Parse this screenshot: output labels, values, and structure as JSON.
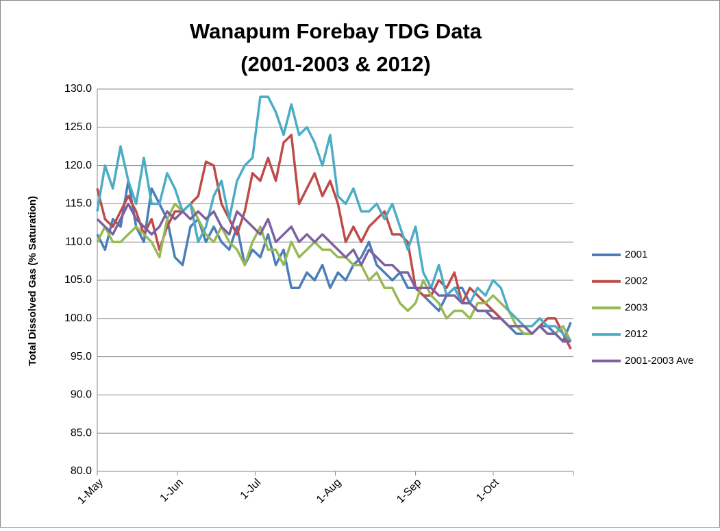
{
  "chart_data": {
    "type": "line",
    "title": [
      "Wanapum Forebay TDG Data",
      "(2001-2003 & 2012)"
    ],
    "y_label": "Total Dissolved Gas (% Saturation)",
    "x": [
      0,
      3,
      6,
      9,
      12,
      15,
      18,
      21,
      24,
      27,
      30,
      33,
      36,
      39,
      42,
      45,
      48,
      51,
      54,
      57,
      60,
      63,
      66,
      69,
      72,
      75,
      78,
      81,
      84,
      87,
      90,
      93,
      96,
      99,
      102,
      105,
      108,
      111,
      114,
      117,
      120,
      123,
      126,
      129,
      132,
      135,
      138,
      141,
      144,
      147,
      150,
      153,
      156,
      159,
      162,
      165,
      168,
      171,
      174,
      177,
      180,
      183
    ],
    "xlim": [
      0,
      184
    ],
    "xticks": [
      {
        "value": 0,
        "label": "1-May"
      },
      {
        "value": 31,
        "label": "1-Jun"
      },
      {
        "value": 61,
        "label": "1-Jul"
      },
      {
        "value": 92,
        "label": "1-Aug"
      },
      {
        "value": 123,
        "label": "1-Sep"
      },
      {
        "value": 153,
        "label": "1-Oct"
      }
    ],
    "ylim": [
      80,
      130
    ],
    "yticks": [
      {
        "value": 80,
        "label": "80.0"
      },
      {
        "value": 85,
        "label": "85.0"
      },
      {
        "value": 90,
        "label": "90.0"
      },
      {
        "value": 95,
        "label": "95.0"
      },
      {
        "value": 100,
        "label": "100.0"
      },
      {
        "value": 105,
        "label": "105.0"
      },
      {
        "value": 110,
        "label": "110.0"
      },
      {
        "value": 115,
        "label": "115.0"
      },
      {
        "value": 120,
        "label": "120.0"
      },
      {
        "value": 125,
        "label": "125.0"
      },
      {
        "value": 130,
        "label": "130.0"
      }
    ],
    "grid": true,
    "legend": "right",
    "series": [
      {
        "name": "2001",
        "color": "#4a7ebb",
        "values": [
          111,
          109,
          113,
          112,
          118,
          112,
          110,
          117,
          115,
          113,
          108,
          107,
          112,
          113,
          110,
          112,
          110,
          109,
          112,
          107,
          109,
          108,
          111,
          107,
          109,
          104,
          104,
          106,
          105,
          107,
          104,
          106,
          105,
          107,
          108,
          110,
          107,
          106,
          105,
          106,
          104,
          104,
          103,
          102,
          101,
          103,
          104,
          104,
          102,
          101,
          101,
          101,
          100,
          99,
          98,
          98,
          98,
          99,
          99,
          98,
          97,
          99.5
        ]
      },
      {
        "name": "2002",
        "color": "#be4b48",
        "values": [
          117,
          113,
          112,
          114,
          116,
          114,
          111,
          113,
          109,
          112,
          114,
          114,
          115,
          116,
          120.5,
          120,
          115,
          113,
          111,
          114,
          119,
          118,
          121,
          118,
          123,
          124,
          115,
          117,
          119,
          116,
          118,
          115,
          110,
          112,
          110,
          112,
          113,
          114,
          111,
          111,
          110,
          104,
          103,
          103,
          105,
          104,
          106,
          102,
          104,
          103,
          102,
          101,
          100,
          99,
          99,
          99,
          98,
          99,
          100,
          100,
          98,
          96
        ]
      },
      {
        "name": "2003",
        "color": "#98b954",
        "values": [
          110,
          112,
          110,
          110,
          111,
          112,
          111,
          110,
          108,
          113,
          115,
          114,
          115,
          113,
          111,
          110,
          112,
          110,
          109,
          107,
          110,
          112,
          109,
          109,
          107,
          110,
          108,
          109,
          110,
          109,
          109,
          108,
          108,
          107,
          107,
          105,
          106,
          104,
          104,
          102,
          101,
          102,
          105,
          103,
          102,
          100,
          101,
          101,
          100,
          102,
          102,
          103,
          102,
          101,
          99,
          98,
          98,
          99,
          98,
          98,
          99,
          97
        ]
      },
      {
        "name": "2012",
        "color": "#4bacc6",
        "values": [
          114,
          120,
          117,
          122.5,
          118,
          115,
          121,
          115,
          115,
          119,
          117,
          114,
          115,
          110,
          112,
          116,
          118,
          113,
          118,
          120,
          121,
          129,
          129,
          127,
          124,
          128,
          124,
          125,
          123,
          120,
          124,
          116,
          115,
          117,
          114,
          114,
          115,
          113,
          115,
          112,
          109,
          112,
          106,
          104,
          107,
          103,
          104,
          102,
          102,
          104,
          103,
          105,
          104,
          101,
          100,
          99,
          99,
          100,
          99,
          99,
          98,
          97
        ]
      },
      {
        "name": "2001-2003 Ave",
        "color": "#7d60a0",
        "values": [
          113,
          112,
          111,
          113,
          115,
          113,
          112,
          111,
          112,
          114,
          113,
          114,
          113,
          114,
          113,
          114,
          112,
          111,
          114,
          113,
          112,
          111,
          113,
          110,
          111,
          112,
          110,
          111,
          110,
          111,
          110,
          109,
          108,
          109,
          107,
          109,
          108,
          107,
          107,
          106,
          106,
          104,
          104,
          104,
          103,
          103,
          103,
          102,
          102,
          101,
          101,
          100,
          100,
          99,
          99,
          99,
          98,
          99,
          98,
          98,
          97,
          97
        ]
      }
    ]
  }
}
